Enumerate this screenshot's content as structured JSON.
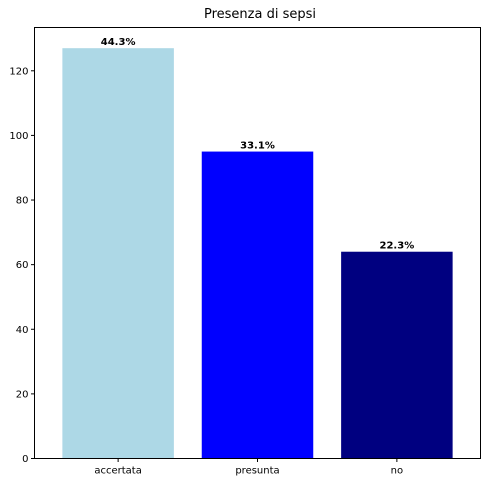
{
  "chart_data": {
    "type": "bar",
    "title": "Presenza di sepsi",
    "xlabel": "",
    "ylabel": "",
    "categories": [
      "accertata",
      "presunta",
      "no"
    ],
    "values": [
      127,
      95,
      64
    ],
    "bar_labels": [
      "44.3%",
      "33.1%",
      "22.3%"
    ],
    "colors": [
      "#add8e6",
      "#0000ff",
      "#000080"
    ],
    "ylim": [
      0,
      133.4
    ],
    "yticks": [
      0,
      20,
      40,
      60,
      80,
      100,
      120
    ],
    "grid": false,
    "legend": "none"
  }
}
